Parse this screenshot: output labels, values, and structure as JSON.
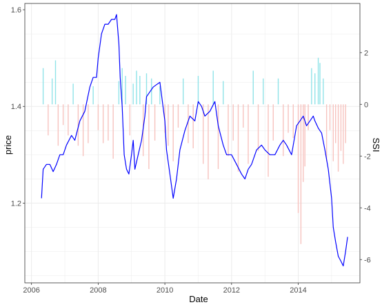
{
  "chart_data": {
    "type": "line",
    "xlabel": "Date",
    "ylabel": "price",
    "y2label": "SSI",
    "grid": true,
    "xlim": [
      2005.8,
      2015.85
    ],
    "ylim": [
      1.035,
      1.613
    ],
    "y2lim": [
      -6.9,
      3.9
    ],
    "x_ticks": [
      2006,
      2008,
      2010,
      2012,
      2014
    ],
    "x_tick_labels": [
      "2006",
      "2008",
      "2010",
      "2012",
      "2014"
    ],
    "y_ticks": [
      1.2,
      1.4,
      1.6
    ],
    "y_tick_labels": [
      "1.2",
      "1.4",
      "1.6"
    ],
    "y2_ticks": [
      -6,
      -4,
      -2,
      0,
      2
    ],
    "y2_tick_labels": [
      "-6",
      "-4",
      "-2",
      "0",
      "2"
    ],
    "colors": {
      "price": "#0000ff",
      "ssi_positive": "#8fe3e8",
      "ssi_negative": "#f7c2be",
      "panel_border": "#333333",
      "grid": "#ebebeb"
    },
    "series": [
      {
        "role": "price",
        "x": [
          2006.3,
          2006.35,
          2006.45,
          2006.55,
          2006.65,
          2006.75,
          2006.85,
          2006.95,
          2007.05,
          2007.2,
          2007.3,
          2007.45,
          2007.6,
          2007.75,
          2007.85,
          2007.95,
          2008.0,
          2008.1,
          2008.2,
          2008.3,
          2008.4,
          2008.5,
          2008.55,
          2008.62,
          2008.66,
          2008.72,
          2008.78,
          2008.85,
          2008.92,
          2009.0,
          2009.05,
          2009.1,
          2009.2,
          2009.3,
          2009.4,
          2009.45,
          2009.55,
          2009.65,
          2009.75,
          2009.85,
          2010.0,
          2010.05,
          2010.15,
          2010.25,
          2010.35,
          2010.45,
          2010.6,
          2010.75,
          2010.9,
          2011.0,
          2011.1,
          2011.2,
          2011.35,
          2011.5,
          2011.6,
          2011.75,
          2011.85,
          2012.0,
          2012.15,
          2012.3,
          2012.4,
          2012.5,
          2012.6,
          2012.75,
          2012.9,
          2013.0,
          2013.15,
          2013.3,
          2013.45,
          2013.55,
          2013.65,
          2013.8,
          2013.95,
          2014.05,
          2014.15,
          2014.25,
          2014.35,
          2014.45,
          2014.5,
          2014.6,
          2014.7,
          2014.8,
          2014.9,
          2015.0,
          2015.05,
          2015.12,
          2015.2,
          2015.28,
          2015.35,
          2015.42,
          2015.48
        ],
        "y": [
          1.21,
          1.27,
          1.28,
          1.28,
          1.265,
          1.28,
          1.3,
          1.3,
          1.32,
          1.34,
          1.33,
          1.37,
          1.39,
          1.44,
          1.46,
          1.46,
          1.5,
          1.55,
          1.57,
          1.57,
          1.58,
          1.58,
          1.59,
          1.53,
          1.46,
          1.4,
          1.3,
          1.27,
          1.26,
          1.3,
          1.33,
          1.27,
          1.3,
          1.33,
          1.38,
          1.42,
          1.43,
          1.44,
          1.445,
          1.45,
          1.37,
          1.31,
          1.26,
          1.21,
          1.25,
          1.31,
          1.35,
          1.38,
          1.37,
          1.41,
          1.4,
          1.38,
          1.39,
          1.41,
          1.36,
          1.32,
          1.3,
          1.3,
          1.28,
          1.26,
          1.25,
          1.27,
          1.28,
          1.31,
          1.32,
          1.31,
          1.3,
          1.3,
          1.32,
          1.33,
          1.32,
          1.3,
          1.36,
          1.37,
          1.38,
          1.36,
          1.37,
          1.38,
          1.37,
          1.355,
          1.345,
          1.31,
          1.27,
          1.21,
          1.15,
          1.12,
          1.09,
          1.08,
          1.07,
          1.1,
          1.13
        ]
      },
      {
        "role": "SSI",
        "x": [
          2006.35,
          2006.5,
          2006.62,
          2006.72,
          2006.8,
          2006.95,
          2007.1,
          2007.25,
          2007.4,
          2007.55,
          2007.7,
          2007.85,
          2008.0,
          2008.15,
          2008.3,
          2008.45,
          2008.62,
          2008.72,
          2008.82,
          2008.95,
          2009.05,
          2009.15,
          2009.25,
          2009.35,
          2009.45,
          2009.52,
          2009.6,
          2009.7,
          2009.85,
          2010.0,
          2010.1,
          2010.25,
          2010.4,
          2010.55,
          2010.7,
          2010.85,
          2011.0,
          2011.15,
          2011.3,
          2011.45,
          2011.6,
          2011.75,
          2011.9,
          2012.05,
          2012.2,
          2012.35,
          2012.5,
          2012.65,
          2012.8,
          2012.95,
          2013.1,
          2013.25,
          2013.4,
          2013.55,
          2013.7,
          2013.85,
          2014.0,
          2014.08,
          2014.15,
          2014.2,
          2014.3,
          2014.4,
          2014.5,
          2014.6,
          2014.65,
          2014.75,
          2014.85,
          2014.95,
          2015.05,
          2015.12,
          2015.2,
          2015.28,
          2015.35,
          2015.42
        ],
        "values": [
          1.4,
          -1.2,
          1.0,
          1.7,
          -1.6,
          -0.8,
          -1.2,
          0.8,
          -1.6,
          -2.0,
          -1.5,
          0.7,
          -1.0,
          -1.5,
          -1.4,
          -2.1,
          0.9,
          1.4,
          1.1,
          -1.2,
          0.8,
          1.3,
          1.1,
          -2.0,
          1.2,
          -2.5,
          1.0,
          -1.4,
          0.7,
          -1.1,
          -1.6,
          -2.2,
          -0.9,
          1.0,
          -1.5,
          -1.7,
          1.1,
          -2.3,
          -2.9,
          1.3,
          -2.5,
          0.9,
          -2.0,
          -1.4,
          -2.6,
          -0.9,
          -2.3,
          1.3,
          -1.8,
          1.0,
          -2.8,
          -1.4,
          1.0,
          -2.0,
          -1.1,
          -1.3,
          -4.2,
          -5.4,
          -3.0,
          -2.4,
          -1.0,
          1.4,
          1.2,
          1.8,
          1.6,
          1.0,
          -2.2,
          -1.0,
          -2.2,
          -1.5,
          -2.6,
          -1.8,
          -2.3,
          -1.5
        ]
      }
    ]
  }
}
